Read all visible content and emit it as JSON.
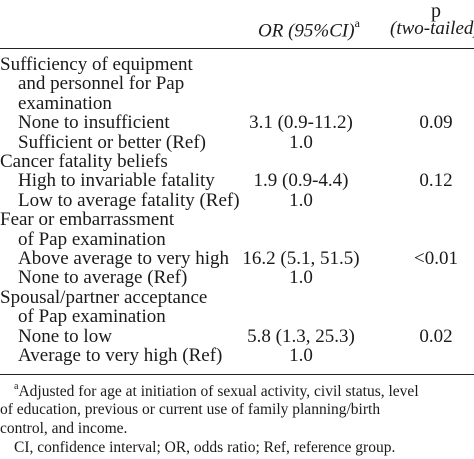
{
  "header": {
    "p_label": "p",
    "or_label": "OR (95%CI)",
    "or_superscript": "a",
    "p_sublabel": "(two-tailed)"
  },
  "rows": [
    {
      "label": "Sufficiency of equipment",
      "indent": 0,
      "or": "",
      "p": ""
    },
    {
      "label": "and personnel for Pap",
      "indent": 1,
      "or": "",
      "p": ""
    },
    {
      "label": "examination",
      "indent": 1,
      "or": "",
      "p": ""
    },
    {
      "label": "None to insufficient",
      "indent": 1,
      "or": "3.1 (0.9-11.2)",
      "p": "0.09"
    },
    {
      "label": "Sufficient or better (Ref)",
      "indent": 1,
      "or": "1.0",
      "p": ""
    },
    {
      "label": "Cancer fatality beliefs",
      "indent": 0,
      "or": "",
      "p": ""
    },
    {
      "label": "High to invariable fatality",
      "indent": 1,
      "or": "1.9 (0.9-4.4)",
      "p": "0.12"
    },
    {
      "label": "Low to average fatality (Ref)",
      "indent": 1,
      "or": "1.0",
      "p": ""
    },
    {
      "label": "Fear or embarrassment",
      "indent": 0,
      "or": "",
      "p": ""
    },
    {
      "label": "of Pap examination",
      "indent": 1,
      "or": "",
      "p": ""
    },
    {
      "label": "Above average to very high",
      "indent": 1,
      "or": "16.2 (5.1, 51.5)",
      "p": "<0.01"
    },
    {
      "label": "None to average (Ref)",
      "indent": 1,
      "or": "1.0",
      "p": ""
    },
    {
      "label": "Spousal/partner acceptance",
      "indent": 0,
      "or": "",
      "p": ""
    },
    {
      "label": "of Pap examination",
      "indent": 1,
      "or": "",
      "p": ""
    },
    {
      "label": "None to low",
      "indent": 1,
      "or": "5.8 (1.3, 25.3)",
      "p": "0.02"
    },
    {
      "label": "Average to very high (Ref)",
      "indent": 1,
      "or": "1.0",
      "p": ""
    }
  ],
  "footnotes": {
    "a_marker": "a",
    "a_line1": "Adjusted for age at initiation of sexual activity, civil status, level",
    "a_line2": "of education, previous or current use of family planning/birth",
    "a_line3": "control, and income.",
    "abbrev": "CI, confidence interval; OR, odds ratio; Ref, reference group."
  }
}
